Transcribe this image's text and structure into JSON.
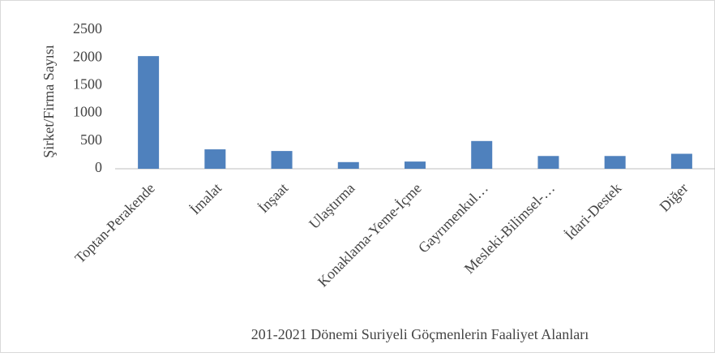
{
  "chart_data": {
    "type": "bar",
    "title": "201-2021 Dönemi Suriyeli Göçmenlerin Faaliyet Alanları",
    "y_label": "Şirket/Firma Sayısı",
    "categories": [
      "Toptan-Perakende",
      "İmalat",
      "İnşaat",
      "Ulaştırma",
      "Konaklama-Yeme-İçme",
      "Gayrımenkul…",
      "Mesleki-Bilimsel-…",
      "İdari-Destek",
      "Diğer"
    ],
    "values": [
      2030,
      350,
      320,
      120,
      130,
      500,
      230,
      230,
      270
    ],
    "color": "#4f81bd",
    "ylim": [
      0,
      2500
    ],
    "yticks": [
      0,
      500,
      1000,
      1500,
      2000,
      2500
    ],
    "grid": false
  }
}
